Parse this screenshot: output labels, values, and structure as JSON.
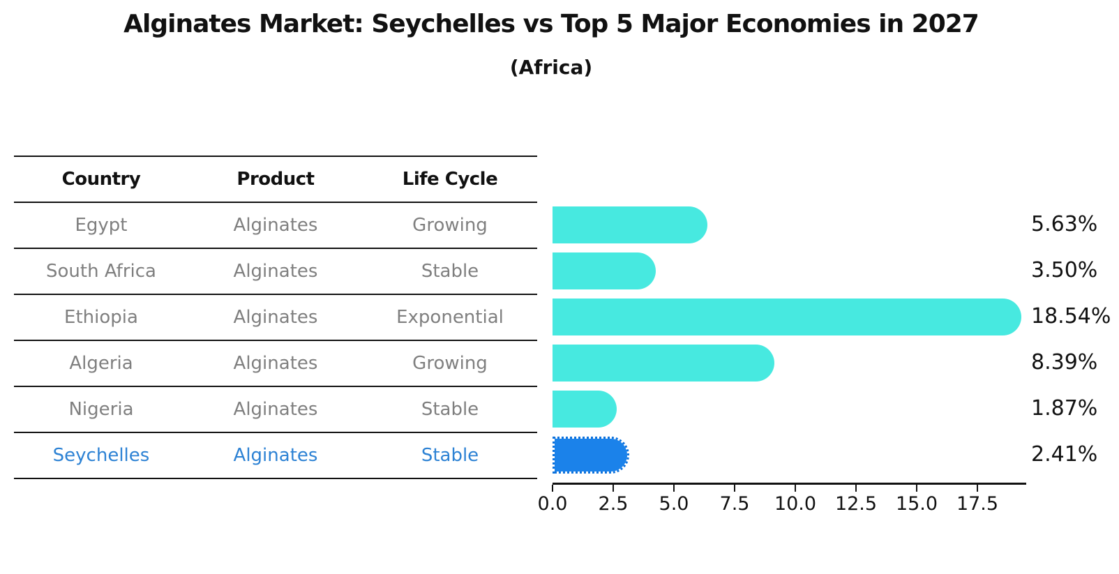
{
  "title": "Alginates Market: Seychelles vs Top 5 Major Economies in 2027",
  "subtitle": "(Africa)",
  "table": {
    "headers": [
      "Country",
      "Product",
      "Life Cycle"
    ],
    "rows": [
      {
        "country": "Egypt",
        "product": "Alginates",
        "life_cycle": "Growing",
        "highlight": false
      },
      {
        "country": "South Africa",
        "product": "Alginates",
        "life_cycle": "Stable",
        "highlight": false
      },
      {
        "country": "Ethiopia",
        "product": "Alginates",
        "life_cycle": "Exponential",
        "highlight": false
      },
      {
        "country": "Algeria",
        "product": "Alginates",
        "life_cycle": "Growing",
        "highlight": false
      },
      {
        "country": "Nigeria",
        "product": "Alginates",
        "life_cycle": "Stable",
        "highlight": false
      },
      {
        "country": "Seychelles",
        "product": "Alginates",
        "life_cycle": "Stable",
        "highlight": true
      }
    ]
  },
  "chart_data": {
    "type": "bar",
    "orientation": "horizontal",
    "categories": [
      "Egypt",
      "South Africa",
      "Ethiopia",
      "Algeria",
      "Nigeria",
      "Seychelles"
    ],
    "values": [
      5.63,
      3.5,
      18.54,
      8.39,
      1.87,
      2.41
    ],
    "value_labels": [
      "5.63%",
      "3.50%",
      "18.54%",
      "8.39%",
      "1.87%",
      "2.41%"
    ],
    "highlight_index": 5,
    "title": "Alginates Market: Seychelles vs Top 5 Major Economies in 2027",
    "subtitle": "(Africa)",
    "xlabel": "",
    "ylabel": "",
    "xlim": [
      0,
      19.5
    ],
    "xticks": [
      0.0,
      2.5,
      5.0,
      7.5,
      10.0,
      12.5,
      15.0,
      17.5
    ],
    "xticklabels": [
      "0.0",
      "2.5",
      "5.0",
      "7.5",
      "10.0",
      "12.5",
      "15.0",
      "17.5"
    ],
    "grid": false,
    "legend": "none"
  },
  "colors": {
    "background": "#ffffff",
    "ink": "#111111",
    "muted_text": "#7f7f7f",
    "bar_default": "#47e9e0",
    "bar_highlight": "#1b82ea",
    "bar_highlight_edge": "#0e72dc",
    "highlight_text": "#2d82d4"
  }
}
